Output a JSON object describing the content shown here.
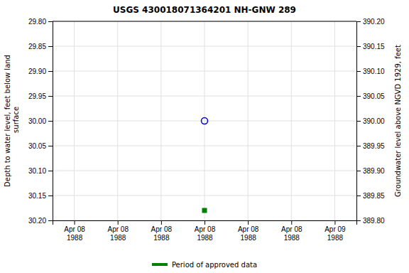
{
  "chart_data": {
    "type": "scatter",
    "title": "USGS 430018071364201 NH-GNW  289",
    "y_label": "Depth to water level, feet below land\n surface",
    "y2_label": "Groundwater level above NGVD 1929, feet",
    "categories": [
      "Apr 08\n1988",
      "Apr 08\n1988",
      "Apr 08\n1988",
      "Apr 08\n1988",
      "Apr 08\n1988",
      "Apr 08\n1988",
      "Apr 09\n1988"
    ],
    "series": [
      {
        "color": "#0000cc",
        "marker": "circle-open",
        "values": [
          null,
          null,
          null,
          30.0,
          null,
          null,
          null
        ]
      },
      {
        "name": "Period of approved data",
        "color": "#008000",
        "marker": "square",
        "values": [
          null,
          null,
          null,
          30.18,
          null,
          null,
          null
        ]
      }
    ],
    "ylim": [
      30.2,
      29.8
    ],
    "yticks": [
      {
        "value": 29.8,
        "label": "29.80"
      },
      {
        "value": 29.85,
        "label": "29.85"
      },
      {
        "value": 29.9,
        "label": "29.90"
      },
      {
        "value": 29.95,
        "label": "29.95"
      },
      {
        "value": 30.0,
        "label": "30.00"
      },
      {
        "value": 30.05,
        "label": "30.05"
      },
      {
        "value": 30.1,
        "label": "30.10"
      },
      {
        "value": 30.15,
        "label": "30.15"
      },
      {
        "value": 30.2,
        "label": "30.20"
      }
    ],
    "y2lim": [
      389.8,
      390.2
    ],
    "y2ticks": [
      {
        "value": 390.2,
        "label": "390.20"
      },
      {
        "value": 390.15,
        "label": "390.15"
      },
      {
        "value": 390.1,
        "label": "390.10"
      },
      {
        "value": 390.05,
        "label": "390.05"
      },
      {
        "value": 390.0,
        "label": "390.00"
      },
      {
        "value": 389.95,
        "label": "389.95"
      },
      {
        "value": 389.9,
        "label": "389.90"
      },
      {
        "value": 389.85,
        "label": "389.85"
      },
      {
        "value": 389.8,
        "label": "389.80"
      }
    ],
    "grid": true,
    "legend": "bottom"
  }
}
